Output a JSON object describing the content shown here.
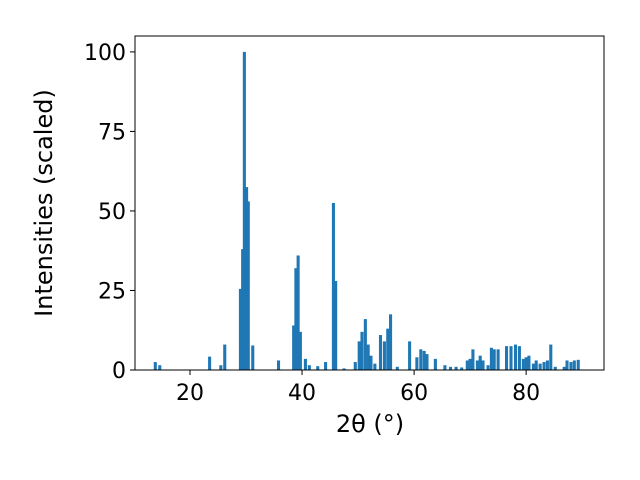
{
  "chart_data": {
    "type": "bar",
    "x_label": "2θ (°)",
    "y_label": "Intensities (scaled)",
    "color": "#1f77b4",
    "bar_width": 0.55,
    "x": [
      13.8,
      14.6,
      23.5,
      25.5,
      26.2,
      29.0,
      29.4,
      29.7,
      30.1,
      30.4,
      31.2,
      35.8,
      38.5,
      38.9,
      39.3,
      39.7,
      40.6,
      41.3,
      42.8,
      44.2,
      45.6,
      46.0,
      47.5,
      49.5,
      50.2,
      50.7,
      51.3,
      51.8,
      52.3,
      53.0,
      54.0,
      54.7,
      55.3,
      55.8,
      57.0,
      59.2,
      60.5,
      61.2,
      61.8,
      62.3,
      63.8,
      65.5,
      66.5,
      67.5,
      68.5,
      69.5,
      70.0,
      70.5,
      71.3,
      71.8,
      72.3,
      73.2,
      73.8,
      74.3,
      75.0,
      76.5,
      77.3,
      78.1,
      78.8,
      79.5,
      80.0,
      80.5,
      81.3,
      81.8,
      82.5,
      83.2,
      83.8,
      84.4,
      85.2,
      86.8,
      87.3,
      88.0,
      88.6,
      89.3
    ],
    "values": [
      2.5,
      1.5,
      4.2,
      1.5,
      8,
      25.5,
      38,
      100,
      57.5,
      53,
      7.7,
      3,
      14,
      32,
      36,
      12,
      3.5,
      1.5,
      1.2,
      2.5,
      52.5,
      28,
      0.5,
      2.5,
      9,
      12,
      16,
      8,
      4.5,
      2,
      11,
      9,
      13,
      17.5,
      1,
      9,
      4,
      6.5,
      6,
      5,
      3.5,
      1.5,
      1,
      1,
      0.8,
      3,
      3.5,
      6.5,
      3,
      4.5,
      3,
      1.5,
      7,
      6.5,
      6.5,
      7.5,
      7.5,
      8,
      7.5,
      3.5,
      4,
      4.5,
      2,
      3,
      2,
      2.5,
      3,
      8,
      1,
      1,
      3,
      2.5,
      3,
      3.2
    ],
    "xlim": [
      10.18,
      93.9
    ],
    "xticks": [
      20,
      40,
      60,
      80
    ],
    "ylim": [
      0,
      105
    ],
    "yticks": [
      0,
      25,
      50,
      75,
      100
    ]
  }
}
